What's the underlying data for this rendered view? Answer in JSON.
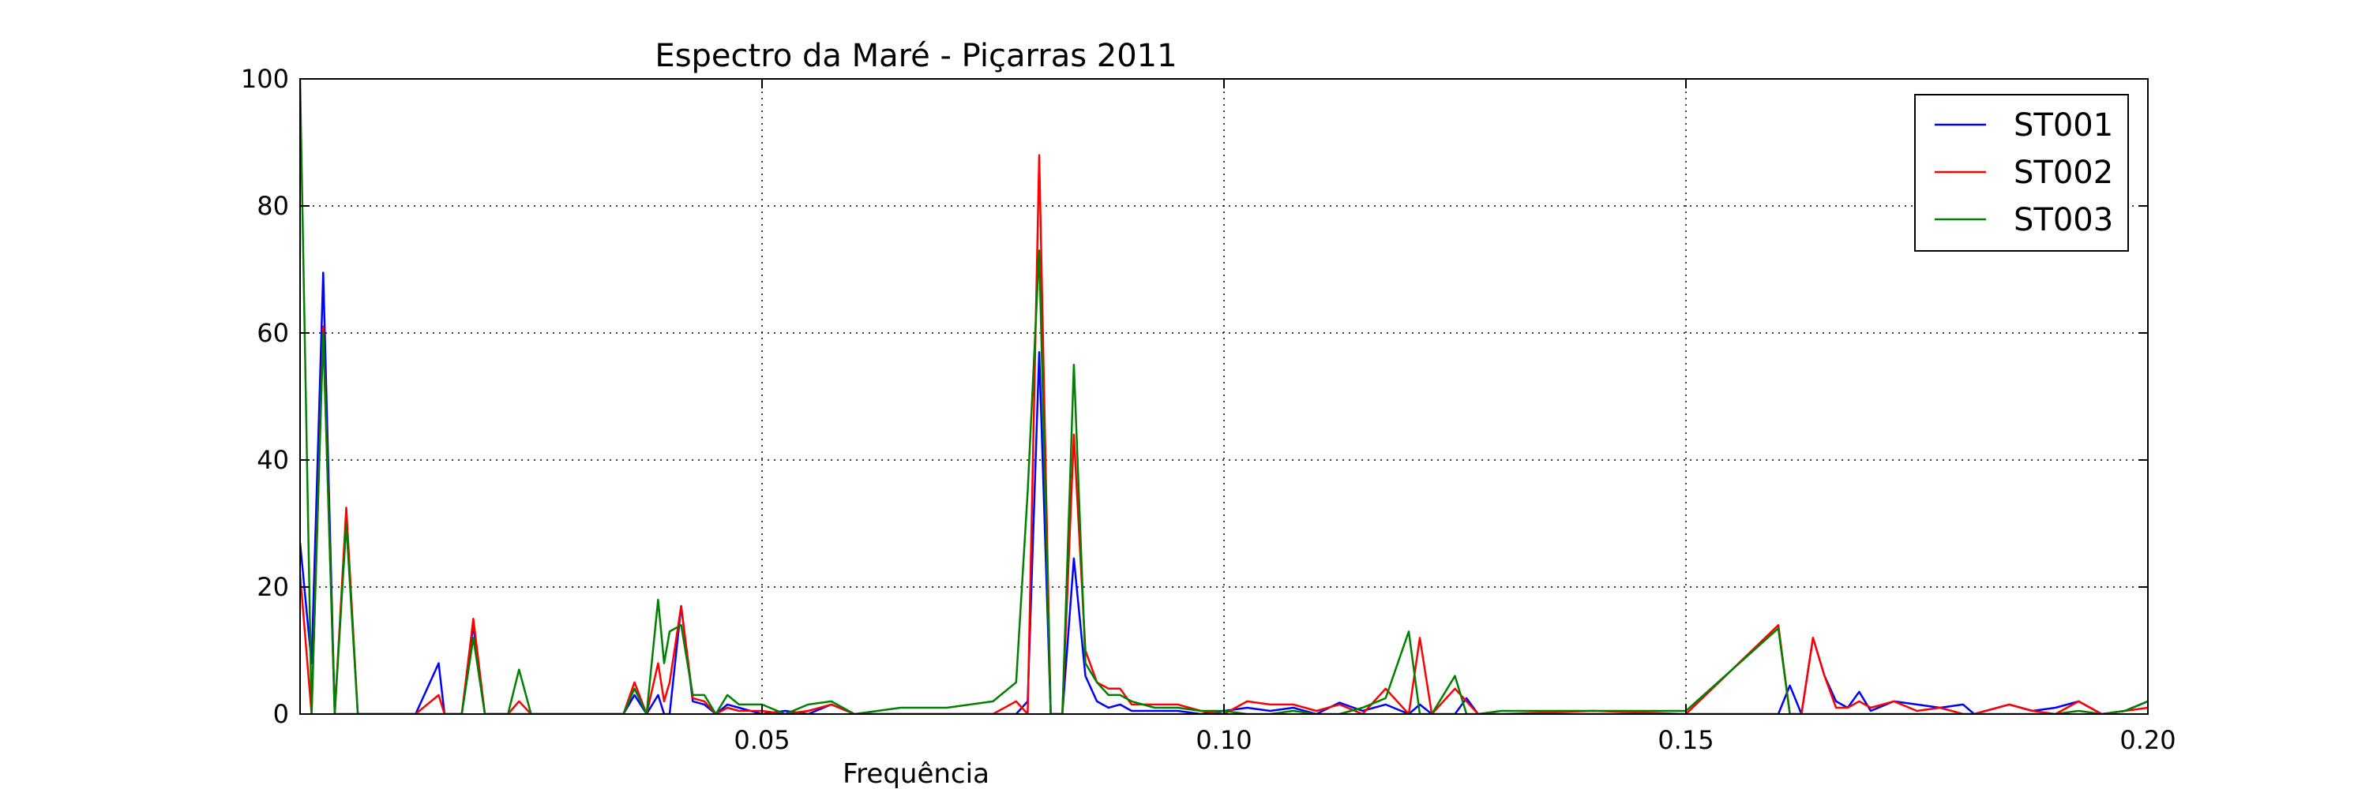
{
  "chart_data": {
    "type": "line",
    "title": "Espectro da Maré - Piçarras 2011",
    "xlabel": "Frequência",
    "ylabel": "",
    "xlim": [
      0.0,
      0.2
    ],
    "ylim": [
      0,
      100
    ],
    "x_ticks": [
      0.05,
      0.1,
      0.15,
      0.2
    ],
    "x_tick_labels": [
      "0.05",
      "0.10",
      "0.15",
      "0.20"
    ],
    "y_ticks": [
      0,
      20,
      40,
      60,
      80,
      100
    ],
    "y_tick_labels": [
      "0",
      "20",
      "40",
      "60",
      "80",
      "100"
    ],
    "grid": true,
    "legend_position": "top-right",
    "series": [
      {
        "name": "ST001",
        "color": "#0000ff",
        "points": [
          [
            0.0,
            27
          ],
          [
            0.00125,
            8
          ],
          [
            0.0025,
            69.5
          ],
          [
            0.00375,
            0
          ],
          [
            0.005,
            0
          ],
          [
            0.00625,
            0
          ],
          [
            0.0075,
            0
          ],
          [
            0.01,
            0
          ],
          [
            0.0125,
            0
          ],
          [
            0.015,
            8
          ],
          [
            0.01563,
            0
          ],
          [
            0.0175,
            0
          ],
          [
            0.01875,
            14
          ],
          [
            0.02,
            0
          ],
          [
            0.0225,
            0
          ],
          [
            0.0237,
            0
          ],
          [
            0.025,
            0
          ],
          [
            0.03,
            0
          ],
          [
            0.035,
            0
          ],
          [
            0.0362,
            3
          ],
          [
            0.0375,
            0
          ],
          [
            0.03875,
            3
          ],
          [
            0.0394,
            0
          ],
          [
            0.04,
            0
          ],
          [
            0.04125,
            17
          ],
          [
            0.0425,
            2
          ],
          [
            0.04375,
            1.5
          ],
          [
            0.045,
            0
          ],
          [
            0.04625,
            1.5
          ],
          [
            0.0475,
            1
          ],
          [
            0.05,
            0
          ],
          [
            0.0525,
            0.5
          ],
          [
            0.055,
            0
          ],
          [
            0.0575,
            1.5
          ],
          [
            0.06,
            0
          ],
          [
            0.065,
            0
          ],
          [
            0.07,
            0
          ],
          [
            0.075,
            0
          ],
          [
            0.0775,
            0
          ],
          [
            0.07875,
            2
          ],
          [
            0.08,
            57
          ],
          [
            0.08125,
            0
          ],
          [
            0.0825,
            0
          ],
          [
            0.08375,
            24.5
          ],
          [
            0.085,
            6
          ],
          [
            0.08625,
            2
          ],
          [
            0.0875,
            1
          ],
          [
            0.08875,
            1.5
          ],
          [
            0.09,
            0.5
          ],
          [
            0.0925,
            0.5
          ],
          [
            0.095,
            0.5
          ],
          [
            0.0975,
            0
          ],
          [
            0.1,
            0.5
          ],
          [
            0.1025,
            1
          ],
          [
            0.105,
            0.5
          ],
          [
            0.1075,
            1
          ],
          [
            0.11,
            0
          ],
          [
            0.1125,
            1.8
          ],
          [
            0.115,
            0.5
          ],
          [
            0.1175,
            1.5
          ],
          [
            0.12,
            0
          ],
          [
            0.1212,
            1.5
          ],
          [
            0.1225,
            0
          ],
          [
            0.125,
            0
          ],
          [
            0.12625,
            2.5
          ],
          [
            0.1275,
            0
          ],
          [
            0.13,
            0
          ],
          [
            0.14,
            0
          ],
          [
            0.15,
            0
          ],
          [
            0.16,
            0
          ],
          [
            0.16125,
            4.5
          ],
          [
            0.1625,
            0
          ],
          [
            0.16375,
            12
          ],
          [
            0.165,
            6
          ],
          [
            0.16625,
            2
          ],
          [
            0.1675,
            1
          ],
          [
            0.16875,
            3.5
          ],
          [
            0.17,
            0.5
          ],
          [
            0.1725,
            2
          ],
          [
            0.175,
            1.5
          ],
          [
            0.1775,
            1
          ],
          [
            0.18,
            1.5
          ],
          [
            0.1812,
            0
          ],
          [
            0.185,
            1.5
          ],
          [
            0.1875,
            0.5
          ],
          [
            0.19,
            1
          ],
          [
            0.1925,
            2
          ],
          [
            0.195,
            0
          ],
          [
            0.1975,
            0.5
          ],
          [
            0.2,
            2
          ]
        ]
      },
      {
        "name": "ST002",
        "color": "#ff0000",
        "points": [
          [
            0.0,
            22
          ],
          [
            0.00125,
            0
          ],
          [
            0.0025,
            61
          ],
          [
            0.00375,
            0
          ],
          [
            0.005,
            32.5
          ],
          [
            0.00625,
            0
          ],
          [
            0.0075,
            0
          ],
          [
            0.01,
            0
          ],
          [
            0.0125,
            0
          ],
          [
            0.015,
            3
          ],
          [
            0.01563,
            0
          ],
          [
            0.0175,
            0
          ],
          [
            0.01875,
            15
          ],
          [
            0.02,
            0
          ],
          [
            0.0225,
            0
          ],
          [
            0.0237,
            2
          ],
          [
            0.025,
            0
          ],
          [
            0.03,
            0
          ],
          [
            0.035,
            0
          ],
          [
            0.0362,
            5
          ],
          [
            0.0375,
            0
          ],
          [
            0.03875,
            8
          ],
          [
            0.0394,
            2
          ],
          [
            0.04,
            5
          ],
          [
            0.04125,
            17
          ],
          [
            0.0425,
            2.5
          ],
          [
            0.04375,
            2
          ],
          [
            0.045,
            0
          ],
          [
            0.04625,
            1
          ],
          [
            0.0475,
            0.5
          ],
          [
            0.05,
            0.5
          ],
          [
            0.0525,
            0
          ],
          [
            0.055,
            0.5
          ],
          [
            0.0575,
            1.5
          ],
          [
            0.06,
            0
          ],
          [
            0.065,
            0
          ],
          [
            0.07,
            0
          ],
          [
            0.075,
            0
          ],
          [
            0.0775,
            2
          ],
          [
            0.07875,
            0
          ],
          [
            0.08,
            88
          ],
          [
            0.08125,
            0
          ],
          [
            0.0825,
            0
          ],
          [
            0.08375,
            44
          ],
          [
            0.085,
            10
          ],
          [
            0.08625,
            5
          ],
          [
            0.0875,
            4
          ],
          [
            0.08875,
            4
          ],
          [
            0.09,
            1.5
          ],
          [
            0.0925,
            1.5
          ],
          [
            0.095,
            1.5
          ],
          [
            0.0975,
            0.5
          ],
          [
            0.1,
            0
          ],
          [
            0.1025,
            2
          ],
          [
            0.105,
            1.5
          ],
          [
            0.1075,
            1.5
          ],
          [
            0.11,
            0.5
          ],
          [
            0.1125,
            1.5
          ],
          [
            0.115,
            0
          ],
          [
            0.1175,
            4
          ],
          [
            0.12,
            0
          ],
          [
            0.1212,
            12
          ],
          [
            0.1225,
            0
          ],
          [
            0.125,
            4
          ],
          [
            0.12625,
            2
          ],
          [
            0.1275,
            0
          ],
          [
            0.13,
            0
          ],
          [
            0.14,
            0.5
          ],
          [
            0.15,
            0
          ],
          [
            0.16,
            14
          ],
          [
            0.16125,
            0
          ],
          [
            0.1625,
            0
          ],
          [
            0.16375,
            12
          ],
          [
            0.165,
            6
          ],
          [
            0.16625,
            1
          ],
          [
            0.1675,
            1
          ],
          [
            0.16875,
            2
          ],
          [
            0.17,
            1
          ],
          [
            0.1725,
            2
          ],
          [
            0.175,
            0.5
          ],
          [
            0.1775,
            1
          ],
          [
            0.18,
            0
          ],
          [
            0.1812,
            0
          ],
          [
            0.185,
            1.5
          ],
          [
            0.1875,
            0.5
          ],
          [
            0.19,
            0
          ],
          [
            0.1925,
            2
          ],
          [
            0.195,
            0
          ],
          [
            0.1975,
            0.5
          ],
          [
            0.2,
            1
          ]
        ]
      },
      {
        "name": "ST003",
        "color": "#008000",
        "points": [
          [
            0.0,
            100
          ],
          [
            0.00125,
            0
          ],
          [
            0.0025,
            60
          ],
          [
            0.00375,
            0
          ],
          [
            0.005,
            30
          ],
          [
            0.00625,
            0
          ],
          [
            0.0075,
            0
          ],
          [
            0.01,
            0
          ],
          [
            0.0125,
            0
          ],
          [
            0.015,
            0
          ],
          [
            0.01563,
            0
          ],
          [
            0.0175,
            0
          ],
          [
            0.01875,
            12
          ],
          [
            0.02,
            0
          ],
          [
            0.0225,
            0
          ],
          [
            0.0237,
            7
          ],
          [
            0.025,
            0
          ],
          [
            0.03,
            0
          ],
          [
            0.035,
            0
          ],
          [
            0.0362,
            4
          ],
          [
            0.0375,
            0
          ],
          [
            0.03875,
            18
          ],
          [
            0.0394,
            8
          ],
          [
            0.04,
            13
          ],
          [
            0.04125,
            14
          ],
          [
            0.0425,
            3
          ],
          [
            0.04375,
            3
          ],
          [
            0.045,
            0
          ],
          [
            0.04625,
            3
          ],
          [
            0.0475,
            1.5
          ],
          [
            0.05,
            1.5
          ],
          [
            0.0525,
            0
          ],
          [
            0.055,
            1.5
          ],
          [
            0.0575,
            2
          ],
          [
            0.06,
            0
          ],
          [
            0.065,
            1
          ],
          [
            0.07,
            1
          ],
          [
            0.075,
            2
          ],
          [
            0.0775,
            5
          ],
          [
            0.07875,
            35
          ],
          [
            0.08,
            73
          ],
          [
            0.08125,
            0
          ],
          [
            0.0825,
            0
          ],
          [
            0.08375,
            55
          ],
          [
            0.085,
            8
          ],
          [
            0.08625,
            5
          ],
          [
            0.0875,
            3
          ],
          [
            0.08875,
            3
          ],
          [
            0.09,
            2
          ],
          [
            0.0925,
            1
          ],
          [
            0.095,
            1
          ],
          [
            0.0975,
            0.5
          ],
          [
            0.1,
            0.5
          ],
          [
            0.1025,
            0
          ],
          [
            0.105,
            0
          ],
          [
            0.1075,
            0.5
          ],
          [
            0.11,
            0
          ],
          [
            0.1125,
            0
          ],
          [
            0.115,
            1
          ],
          [
            0.1175,
            2.5
          ],
          [
            0.12,
            13
          ],
          [
            0.1212,
            0
          ],
          [
            0.1225,
            0
          ],
          [
            0.125,
            6
          ],
          [
            0.12625,
            0
          ],
          [
            0.1275,
            0
          ],
          [
            0.13,
            0.5
          ],
          [
            0.14,
            0.5
          ],
          [
            0.15,
            0.5
          ],
          [
            0.16,
            13.5
          ],
          [
            0.16125,
            0
          ],
          [
            0.1625,
            0
          ],
          [
            0.16375,
            0
          ],
          [
            0.165,
            0
          ],
          [
            0.16625,
            0
          ],
          [
            0.1675,
            0
          ],
          [
            0.16875,
            0
          ],
          [
            0.17,
            0
          ],
          [
            0.1725,
            0
          ],
          [
            0.175,
            0
          ],
          [
            0.1775,
            0
          ],
          [
            0.18,
            0
          ],
          [
            0.1812,
            0
          ],
          [
            0.185,
            0
          ],
          [
            0.1875,
            0
          ],
          [
            0.19,
            0
          ],
          [
            0.1925,
            0.5
          ],
          [
            0.195,
            0
          ],
          [
            0.1975,
            0.5
          ],
          [
            0.2,
            2
          ]
        ]
      }
    ]
  }
}
